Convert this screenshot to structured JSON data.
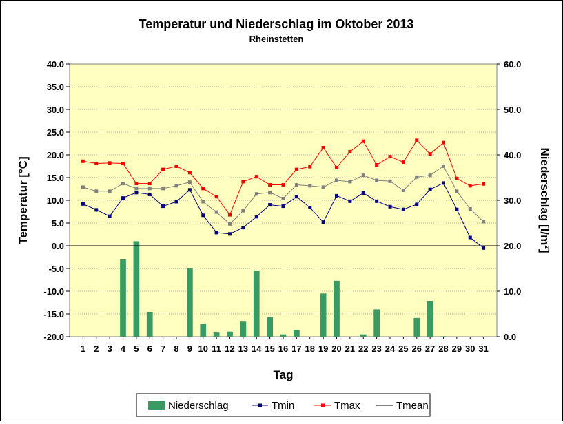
{
  "chart_data": {
    "type": "bar",
    "title": "Temperatur und Niederschlag im Oktober 2013",
    "subtitle": "Rheinstetten",
    "xlabel": "Tag",
    "ylabel": "Temperatur [°C]",
    "y2label": "Niederschlag [l/m²]",
    "ylim": [
      -20,
      40
    ],
    "y2lim": [
      0,
      60
    ],
    "yticks": [
      "-20.0",
      "-15.0",
      "-10.0",
      "-5.0",
      "0.0",
      "5.0",
      "10.0",
      "15.0",
      "20.0",
      "25.0",
      "30.0",
      "35.0",
      "40.0"
    ],
    "y2ticks": [
      "0.0",
      "10.0",
      "20.0",
      "30.0",
      "40.0",
      "50.0",
      "60.0"
    ],
    "categories": [
      "1",
      "2",
      "3",
      "4",
      "5",
      "6",
      "7",
      "8",
      "9",
      "10",
      "11",
      "12",
      "13",
      "14",
      "15",
      "16",
      "17",
      "18",
      "19",
      "20",
      "21",
      "22",
      "23",
      "24",
      "25",
      "26",
      "27",
      "28",
      "29",
      "30",
      "31"
    ],
    "grid": true,
    "legend_position": "bottom",
    "series": [
      {
        "name": "Niederschlag",
        "kind": "bar",
        "axis": "right",
        "color": "#3a9a63",
        "values": [
          0,
          0,
          0,
          17.0,
          21.0,
          5.3,
          0,
          0,
          15.0,
          2.8,
          0.9,
          1.1,
          3.3,
          14.5,
          4.3,
          0.5,
          1.4,
          0,
          9.5,
          12.3,
          0,
          0.5,
          6.0,
          0,
          0,
          4.1,
          7.8,
          0.1,
          0,
          0,
          0
        ]
      },
      {
        "name": "Tmin",
        "kind": "line",
        "axis": "left",
        "color": "#000080",
        "values": [
          9.2,
          7.9,
          6.5,
          10.5,
          11.7,
          11.3,
          8.7,
          9.7,
          12.3,
          6.7,
          2.9,
          2.6,
          4.0,
          6.4,
          9.0,
          8.7,
          10.8,
          8.4,
          5.2,
          11.0,
          9.8,
          11.6,
          9.8,
          8.6,
          8.0,
          9.1,
          12.4,
          13.8,
          8.0,
          1.8,
          -0.5
        ]
      },
      {
        "name": "Tmax",
        "kind": "line",
        "axis": "left",
        "color": "#ff0000",
        "values": [
          18.6,
          18.1,
          18.2,
          18.1,
          13.7,
          13.7,
          16.8,
          17.5,
          16.1,
          12.6,
          10.8,
          6.8,
          14.1,
          15.2,
          13.4,
          13.4,
          16.8,
          17.4,
          21.6,
          17.2,
          20.7,
          23.0,
          17.8,
          19.6,
          18.4,
          23.2,
          20.2,
          22.7,
          14.8,
          13.2,
          13.6
        ]
      },
      {
        "name": "Tmean",
        "kind": "line",
        "axis": "left",
        "color": "#808080",
        "legend_color": "#000000",
        "values": [
          12.9,
          12.0,
          12.0,
          13.7,
          12.6,
          12.6,
          12.6,
          13.2,
          14.0,
          9.7,
          7.4,
          4.8,
          7.7,
          11.4,
          11.7,
          10.4,
          13.4,
          13.2,
          12.9,
          14.4,
          14.1,
          15.5,
          14.4,
          14.2,
          12.2,
          15.1,
          15.5,
          17.5,
          12.0,
          8.1,
          5.3
        ]
      }
    ]
  }
}
